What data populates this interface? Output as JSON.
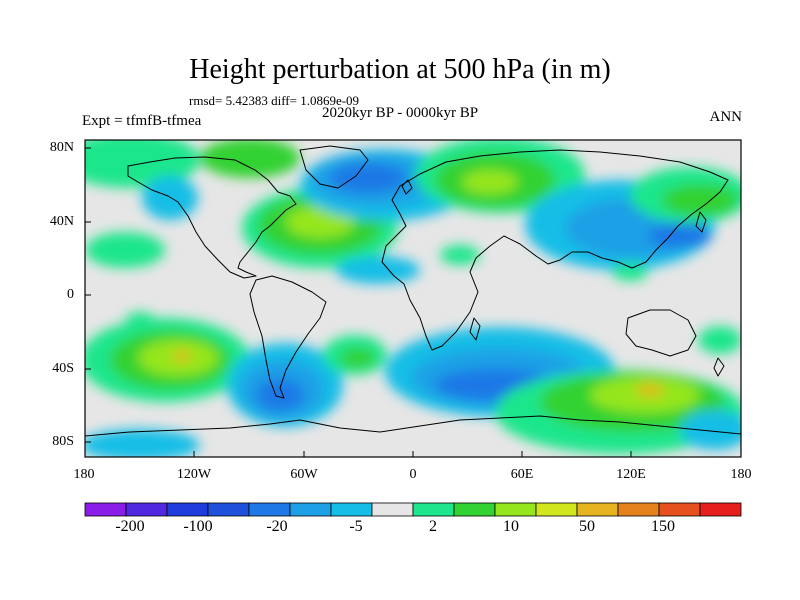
{
  "title": "Height perturbation at 500 hPa (in m)",
  "stats": "rmsd= 5.42383 diff= 1.0869e-09",
  "period": "2020kyr BP - 0000kyr BP",
  "experiment": "Expt = tfmfB-tfmea",
  "season": "ANN",
  "lat_ticks": [
    "80N",
    "40N",
    "0",
    "40S",
    "80S"
  ],
  "lon_ticks": [
    "180",
    "120W",
    "60W",
    "0",
    "60E",
    "120E",
    "180"
  ],
  "colorbar": {
    "labels": [
      "-200",
      "-100",
      "-20",
      "-5",
      "2",
      "10",
      "50",
      "150"
    ],
    "colors": [
      "#8a1ee8",
      "#5028e0",
      "#1e3cdc",
      "#1e50dc",
      "#1e78e6",
      "#1ea0e6",
      "#14bee6",
      "#e6e6e6",
      "#1ee68c",
      "#32d232",
      "#96e61e",
      "#d2e61e",
      "#e6b41e",
      "#e6821e",
      "#e6501e",
      "#e61e1e"
    ]
  },
  "map_colors": {
    "neutral": "#e6e6e6",
    "light_blue": "#14bee6",
    "mid_blue": "#1ea0e6",
    "blue": "#1e78e6",
    "light_green": "#1ee68c",
    "green": "#32d232",
    "yellow_green": "#96e61e",
    "yellow": "#d2e61e",
    "orange": "#e6b41e"
  }
}
